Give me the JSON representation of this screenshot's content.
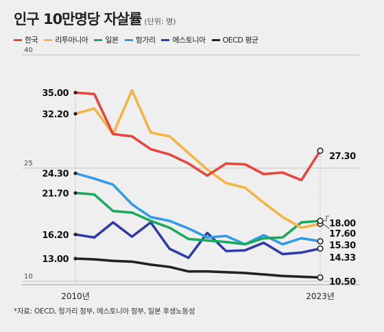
{
  "title": "인구 10만명당 자살률",
  "unit": "(단위: 명)",
  "source": "*자료: OECD, 헝가리 정부, 에스토니아 정부, 일본 후생노동성",
  "chart_data": {
    "type": "line",
    "title": "인구 10만명당 자살률",
    "ylim": [
      10,
      40
    ],
    "yticks": [
      10,
      25,
      40
    ],
    "x_start": 2010,
    "x_end": 2023,
    "x_tick_labels": [
      "2010년",
      "2023년"
    ],
    "series": [
      {
        "name": "한국",
        "color": "#e8453c",
        "values": [
          35.0,
          34.8,
          29.5,
          29.2,
          27.5,
          26.8,
          25.6,
          24.0,
          25.6,
          25.5,
          24.2,
          24.4,
          23.4,
          27.3
        ],
        "start_label": "35.00",
        "end_label": "27.30"
      },
      {
        "name": "리투아니아",
        "color": "#f7b340",
        "values": [
          32.2,
          32.9,
          29.5,
          35.3,
          29.7,
          29.2,
          27.0,
          24.8,
          23.0,
          22.4,
          20.4,
          18.5,
          17.1,
          17.6
        ],
        "start_label": "32.20",
        "end_label": "17.60"
      },
      {
        "name": "일본",
        "color": "#1aaa5b",
        "values": [
          21.7,
          21.5,
          19.3,
          19.1,
          18.0,
          17.1,
          15.6,
          15.4,
          15.2,
          14.9,
          15.7,
          15.8,
          17.8,
          18.0
        ],
        "start_label": "21.70",
        "end_label": "18.00"
      },
      {
        "name": "헝가리",
        "color": "#2f9be6",
        "values": [
          24.3,
          23.6,
          22.8,
          20.2,
          18.5,
          18.0,
          17.0,
          15.8,
          16.0,
          14.9,
          16.1,
          14.9,
          15.7,
          15.3
        ],
        "start_label": "24.30",
        "end_label": "15.30"
      },
      {
        "name": "에스토니아",
        "color": "#2e3bab",
        "values": [
          16.2,
          15.8,
          17.8,
          15.9,
          17.8,
          14.3,
          13.1,
          16.4,
          14.0,
          14.1,
          15.1,
          13.6,
          13.8,
          14.33
        ],
        "start_label": "16.20",
        "end_label": "14.33"
      },
      {
        "name": "OECD 평균",
        "color": "#222222",
        "values": [
          13.0,
          12.9,
          12.7,
          12.6,
          12.2,
          11.9,
          11.3,
          11.3,
          11.2,
          11.1,
          10.9,
          10.7,
          10.6,
          10.5
        ],
        "start_label": "13.00",
        "end_label": "10.50"
      }
    ]
  }
}
